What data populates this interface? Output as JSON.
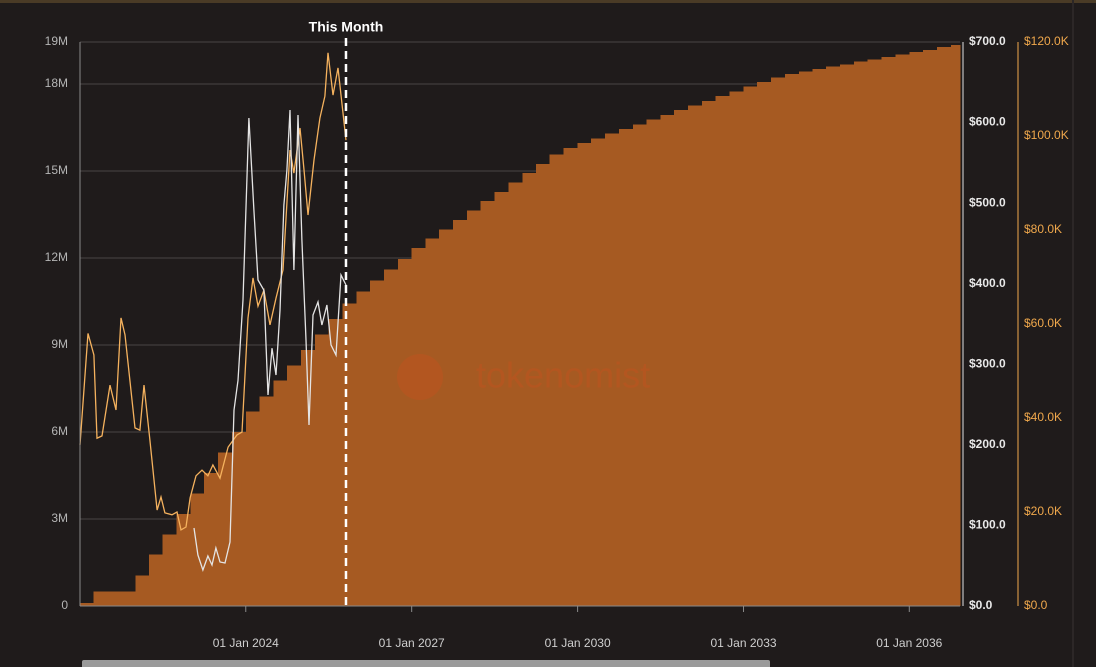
{
  "chart_data": {
    "type": "combo",
    "watermark": "tokenomist",
    "annotation": {
      "x": "2025-10-24",
      "label": "This Month"
    },
    "xlim": [
      "2021-01-01",
      "2036-12-01"
    ],
    "xticks": [
      {
        "value": "2024-01-01",
        "label": "01 Jan 2024"
      },
      {
        "value": "2027-01-01",
        "label": "01 Jan 2027"
      },
      {
        "value": "2030-01-01",
        "label": "01 Jan 2030"
      },
      {
        "value": "2033-01-01",
        "label": "01 Jan 2033"
      },
      {
        "value": "2036-01-01",
        "label": "01 Jan 2036"
      }
    ],
    "ylim": [
      0,
      19.45
    ],
    "yticks": [
      {
        "value": 0,
        "label": "0"
      },
      {
        "value": 3,
        "label": "3M"
      },
      {
        "value": 6,
        "label": "6M"
      },
      {
        "value": 9,
        "label": "9M"
      },
      {
        "value": 12,
        "label": "12M"
      },
      {
        "value": 15,
        "label": "15M"
      },
      {
        "value": 18,
        "label": "18M"
      },
      {
        "value": 19.45,
        "label": "19M"
      }
    ],
    "y2lim": [
      0,
      700
    ],
    "y2ticks": [
      {
        "value": 0,
        "label": "$0.0"
      },
      {
        "value": 100,
        "label": "$100.0"
      },
      {
        "value": 200,
        "label": "$200.0"
      },
      {
        "value": 300,
        "label": "$300.0"
      },
      {
        "value": 400,
        "label": "$400.0"
      },
      {
        "value": 500,
        "label": "$500.0"
      },
      {
        "value": 600,
        "label": "$600.0"
      },
      {
        "value": 700,
        "label": "$700.0"
      }
    ],
    "y3lim": [
      0,
      120000
    ],
    "y3ticks": [
      {
        "value": 0,
        "label": "$0.0"
      },
      {
        "value": 20000,
        "label": "$20.0K"
      },
      {
        "value": 40000,
        "label": "$40.0K"
      },
      {
        "value": 60000,
        "label": "$60.0K"
      },
      {
        "value": 80000,
        "label": "$80.0K"
      },
      {
        "value": 100000,
        "label": "$100.0K"
      },
      {
        "value": 120000,
        "label": "$120.0K"
      }
    ],
    "grid": true,
    "series": [
      {
        "type": "area-step",
        "axis": "y",
        "color": "#a65a22",
        "x": [
          "2021-01-01",
          "2021-04-01",
          "2021-07-01",
          "2021-10-01",
          "2022-01-01",
          "2022-04-01",
          "2022-07-01",
          "2022-10-01",
          "2023-01-01",
          "2023-04-01",
          "2023-07-01",
          "2023-10-01",
          "2024-01-01",
          "2024-04-01",
          "2024-07-01",
          "2024-10-01",
          "2025-01-01",
          "2025-04-01",
          "2025-07-01",
          "2025-10-01",
          "2026-01-01",
          "2026-04-01",
          "2026-07-01",
          "2026-10-01",
          "2027-01-01",
          "2027-04-01",
          "2027-07-01",
          "2027-10-01",
          "2028-01-01",
          "2028-04-01",
          "2028-07-01",
          "2028-10-01",
          "2029-01-01",
          "2029-04-01",
          "2029-07-01",
          "2029-10-01",
          "2030-01-01",
          "2030-04-01",
          "2030-07-01",
          "2030-10-01",
          "2031-01-01",
          "2031-04-01",
          "2031-07-01",
          "2031-10-01",
          "2032-01-01",
          "2032-04-01",
          "2032-07-01",
          "2032-10-01",
          "2033-01-01",
          "2033-04-01",
          "2033-07-01",
          "2033-10-01",
          "2034-01-01",
          "2034-04-01",
          "2034-07-01",
          "2034-10-01",
          "2035-01-01",
          "2035-04-01",
          "2035-07-01",
          "2035-10-01",
          "2036-01-01",
          "2036-04-01",
          "2036-07-01",
          "2036-10-01"
        ],
        "values": [
          0.1,
          0.5,
          0.5,
          0.5,
          1.06,
          1.77,
          2.47,
          3.18,
          3.88,
          4.59,
          5.29,
          6.0,
          6.7,
          7.23,
          7.77,
          8.3,
          8.83,
          9.37,
          9.9,
          10.43,
          10.85,
          11.22,
          11.6,
          11.97,
          12.35,
          12.67,
          12.99,
          13.32,
          13.64,
          13.96,
          14.28,
          14.6,
          14.93,
          15.25,
          15.57,
          15.8,
          15.96,
          16.12,
          16.29,
          16.45,
          16.61,
          16.77,
          16.94,
          17.1,
          17.26,
          17.42,
          17.58,
          17.75,
          17.91,
          18.07,
          18.23,
          18.35,
          18.43,
          18.52,
          18.6,
          18.68,
          18.77,
          18.85,
          18.93,
          19.02,
          19.1,
          19.18,
          19.27,
          19.35
        ]
      },
      {
        "type": "line",
        "axis": "y3",
        "color": "#f5b25e",
        "x": [
          "2021-01-01",
          "2021-02-23",
          "2021-04-03",
          "2021-04-23",
          "2021-05-26",
          "2021-07-18",
          "2021-08-27",
          "2021-09-29",
          "2021-10-25",
          "2021-12-30",
          "2022-02-01",
          "2022-02-28",
          "2022-04-08",
          "2022-05-25",
          "2022-06-20",
          "2022-07-16",
          "2022-09-01",
          "2022-10-04",
          "2022-10-30",
          "2022-12-02",
          "2022-12-29",
          "2023-02-06",
          "2023-03-18",
          "2023-04-26",
          "2023-05-29",
          "2023-07-15",
          "2023-09-06",
          "2023-11-04",
          "2023-12-07",
          "2024-01-16",
          "2024-02-18",
          "2024-03-22",
          "2024-04-30",
          "2024-06-09",
          "2024-07-19",
          "2024-09-03",
          "2024-10-19",
          "2024-11-14",
          "2024-12-24",
          "2025-01-20",
          "2025-02-15",
          "2025-03-27",
          "2025-05-05",
          "2025-06-07",
          "2025-06-27",
          "2025-07-30",
          "2025-09-01",
          "2025-10-24"
        ],
        "values": [
          34300,
          58000,
          53400,
          35700,
          36200,
          47000,
          41700,
          61300,
          57700,
          37900,
          37400,
          47000,
          35300,
          20400,
          23200,
          19800,
          19400,
          20000,
          16200,
          16800,
          23000,
          27700,
          28900,
          27700,
          30000,
          27200,
          33800,
          36400,
          37000,
          61300,
          69800,
          63800,
          67200,
          59800,
          65500,
          71500,
          97000,
          92100,
          101700,
          92800,
          83200,
          94900,
          103800,
          108500,
          117700,
          108700,
          114500,
          99100
        ]
      },
      {
        "type": "line",
        "axis": "y2",
        "color": "#e4e4e4",
        "x": [
          "2023-01-24",
          "2023-02-19",
          "2023-03-24",
          "2023-04-26",
          "2023-05-23",
          "2023-06-18",
          "2023-07-15",
          "2023-08-17",
          "2023-09-19",
          "2023-10-15",
          "2023-11-11",
          "2023-12-14",
          "2024-01-22",
          "2024-02-24",
          "2024-03-22",
          "2024-04-30",
          "2024-05-27",
          "2024-06-22",
          "2024-07-19",
          "2024-08-14",
          "2024-09-09",
          "2024-09-29",
          "2024-10-19",
          "2024-11-14",
          "2024-12-11",
          "2025-01-06",
          "2025-02-02",
          "2025-02-22",
          "2025-03-20",
          "2025-04-22",
          "2025-05-18",
          "2025-06-20",
          "2025-07-17",
          "2025-08-19",
          "2025-09-21",
          "2025-10-24"
        ],
        "values": [
          96.8,
          63.3,
          44.7,
          62,
          50.9,
          72,
          54.6,
          53.4,
          79.4,
          243,
          280,
          380,
          605.7,
          491.5,
          404.6,
          392,
          261.9,
          320,
          286.7,
          367,
          497.7,
          541,
          615.6,
          417,
          609.4,
          454.2,
          330.2,
          224.6,
          361.2,
          377.3,
          348.8,
          373.6,
          324,
          311.5,
          410.8,
          398.4
        ]
      }
    ]
  }
}
